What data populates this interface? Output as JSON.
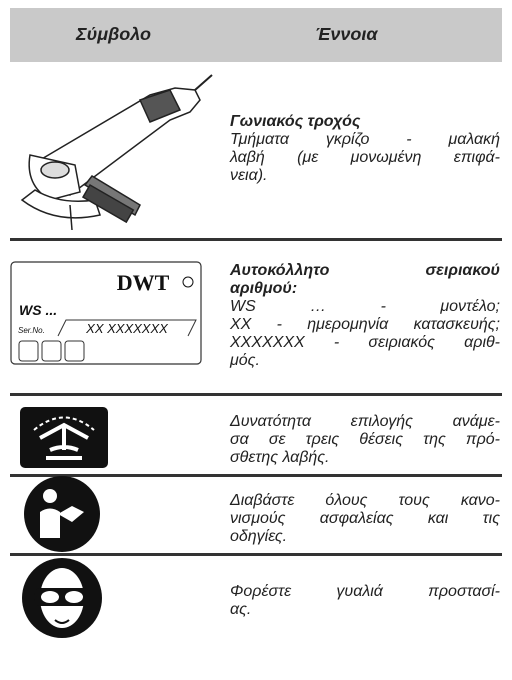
{
  "header": {
    "symbol": "Σύμβολο",
    "meaning": "Έννοια"
  },
  "rows": [
    {
      "title": [
        "Γωνιακός τροχός"
      ],
      "lines": [
        "Τμήματα γκρίζο - μαλακή",
        "λαβή (με μονωμένη επιφά-",
        "νεια)."
      ]
    },
    {
      "title": [
        "Αυτοκόλλητο σειριακού",
        "αριθμού:"
      ],
      "lines": [
        "WS … - μοντέλο;",
        "XX - ημερομηνία κατασκευής;",
        "XXXXXXX - σειριακός αριθ-",
        "μός."
      ],
      "sticker": {
        "brand": "DWT",
        "model": "WS ...",
        "serial_label": "Ser.No.",
        "serial": "XX XXXXXXX"
      }
    },
    {
      "lines": [
        "Δυνατότητα επιλογής ανάμε-",
        "σα σε τρεις θέσεις της πρό-",
        "σθετης λαβής."
      ]
    },
    {
      "lines": [
        "Διαβάστε όλους τους κανο-",
        "νισμούς ασφαλείας και τις",
        "οδηγίες."
      ]
    },
    {
      "lines": [
        "Φορέστε γυαλιά προστασί-",
        "ας."
      ]
    }
  ]
}
